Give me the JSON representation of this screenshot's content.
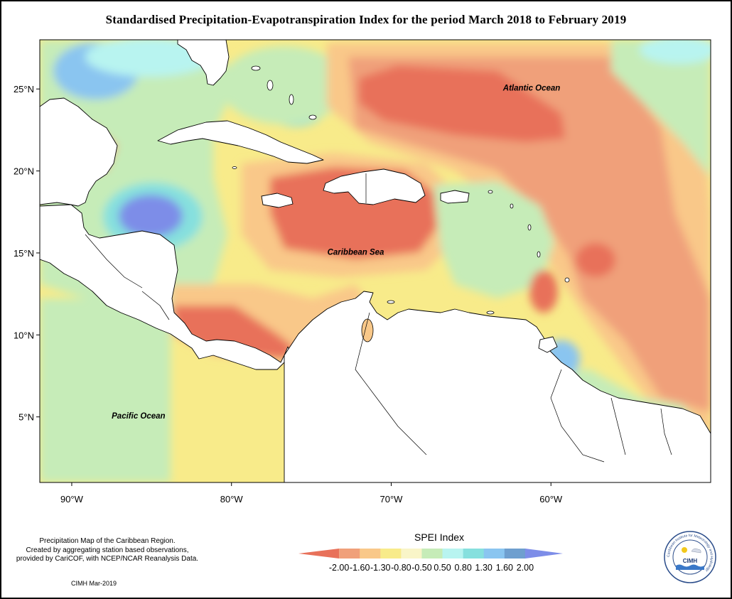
{
  "title": "Standardised Precipitation-Evapotranspiration Index for the period March 2018 to February 2019",
  "map": {
    "lon_range": [
      -92,
      -50
    ],
    "lat_range": [
      1.0,
      28.0
    ],
    "lon_ticks": [
      {
        "value": -90,
        "label": "90°W"
      },
      {
        "value": -80,
        "label": "80°W"
      },
      {
        "value": -70,
        "label": "70°W"
      },
      {
        "value": -60,
        "label": "60°W"
      }
    ],
    "lat_ticks": [
      {
        "value": 25,
        "label": "25°N"
      },
      {
        "value": 20,
        "label": "20°N"
      },
      {
        "value": 15,
        "label": "15°N"
      },
      {
        "value": 10,
        "label": "10°N"
      },
      {
        "value": 5,
        "label": "5°N"
      }
    ],
    "labels": [
      {
        "text": "Atlantic Ocean",
        "lon": -63,
        "lat": 24.9
      },
      {
        "text": "Caribbean Sea",
        "lon": -74,
        "lat": 14.9
      },
      {
        "text": "Pacific Ocean",
        "lon": -87.5,
        "lat": 4.9
      }
    ]
  },
  "legend": {
    "title": "SPEI Index",
    "colors": [
      "#e8715a",
      "#f0a07a",
      "#f9c889",
      "#f8eb8a",
      "#f9f5c8",
      "#c6ecb8",
      "#b8f4f0",
      "#86e0de",
      "#8ac5f0",
      "#6f9fcf",
      "#7d8de8"
    ],
    "tick_labels": [
      "-2.00",
      "-1.60",
      "-1.30",
      "-0.80",
      "-0.50",
      "0.50",
      "0.80",
      "1.30",
      "1.60",
      "2.00"
    ]
  },
  "credit": {
    "lines": [
      "Precipitation Map of the Caribbean Region.",
      "Created by aggregating station based observations,",
      "provided by CariCOF, with NCEP/NCAR Reanalysis Data."
    ],
    "date": "CIMH Mar-2019"
  },
  "logo": {
    "ring_text": "Caribbean Institute for Meteorology and Hydrology",
    "acronym": "CIMH"
  }
}
